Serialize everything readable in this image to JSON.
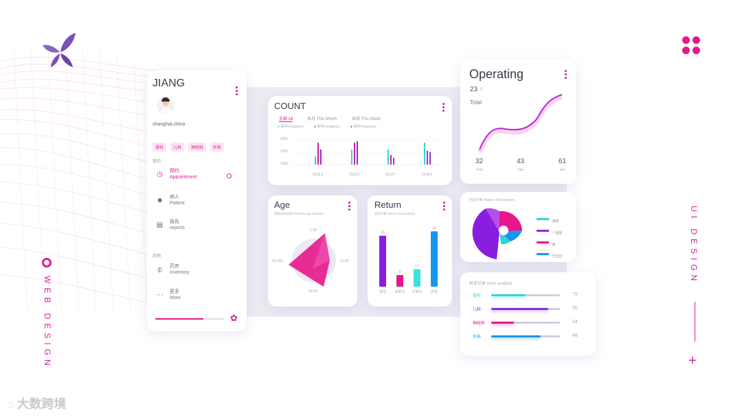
{
  "profile": {
    "name": "JIANG",
    "location": "shanghai,china",
    "tags": [
      "骨科",
      "儿科",
      "神经科",
      "外科"
    ],
    "section_mine": "我的",
    "section_other": "其他",
    "nav": [
      {
        "zh": "预约",
        "en": "Appointment",
        "icon": "clock-icon",
        "active": true
      },
      {
        "zh": "病人",
        "en": "Patient",
        "icon": "person-icon",
        "active": false
      },
      {
        "zh": "报告",
        "en": "reports",
        "icon": "clipboard-icon",
        "active": false
      },
      {
        "zh": "药房",
        "en": "Inventory",
        "icon": "pill-icon",
        "active": false
      },
      {
        "zh": "更多",
        "en": "More",
        "icon": "more-icon",
        "active": false
      }
    ],
    "progress": 0.7
  },
  "count": {
    "title": "COUNT",
    "tabs": [
      "全部 All",
      "本月 This Month",
      "本周 This Week"
    ],
    "legend": [
      "事件Frequency",
      "事件Frequency",
      "事件Frequency"
    ],
    "y_ticks": [
      "3000",
      "2000",
      "1000"
    ],
    "x_ticks": [
      "2018.3",
      "2018.5",
      "2018.7",
      "2018.9"
    ],
    "colors": [
      "#2fd6d6",
      "#d81b9c",
      "#8b2ce0"
    ]
  },
  "operating": {
    "title": "Operating",
    "value": "23",
    "label": "Total",
    "points": [
      {
        "value": "32",
        "month": "Feb"
      },
      {
        "value": "43",
        "month": "Mar"
      },
      {
        "value": "61",
        "month": "Apr"
      }
    ]
  },
  "age": {
    "title": "Age",
    "subtitle": "年龄分布分析 Patients' age analysis",
    "labels": [
      "0-20",
      "21-40",
      "40-60",
      "60-150"
    ]
  },
  "return": {
    "title": "Return",
    "subtitle": "返诊分析 Return visit analysis",
    "bars": [
      {
        "label": "男性",
        "value": "35",
        "color": "#8b1de0"
      },
      {
        "label": "未复诊",
        "value": "8",
        "color": "#e8168c"
      },
      {
        "label": "已复诊",
        "value": "12",
        "color": "#3ee0e0"
      },
      {
        "label": "男性",
        "value": "38",
        "color": "#1597ee"
      }
    ]
  },
  "revisit": {
    "subtitle": "回访分析  Return visit analysis",
    "legend": [
      {
        "label": "满意",
        "color": "#2fd6d6"
      },
      {
        "label": "一般般",
        "color": "#8b2ce0"
      },
      {
        "label": "差",
        "color": "#e8168c"
      },
      {
        "label": "已回访",
        "color": "#1597ee"
      }
    ]
  },
  "rooms": {
    "subtitle": "科室记录  room analysis",
    "rows": [
      {
        "name": "骨科",
        "value": "75",
        "fill": 0.5,
        "color": "#2fd6d6"
      },
      {
        "name": "儿科",
        "value": "50",
        "fill": 0.83,
        "color": "#8b2ce0"
      },
      {
        "name": "神经科",
        "value": "34",
        "fill": 0.33,
        "color": "#e8168c"
      },
      {
        "name": "外科",
        "value": "48",
        "fill": 0.72,
        "color": "#1597ee"
      }
    ]
  },
  "deco": {
    "web_design": "WEB DESIGN",
    "ui_design": "UI DESIGN",
    "watermark": "大数跨境"
  }
}
